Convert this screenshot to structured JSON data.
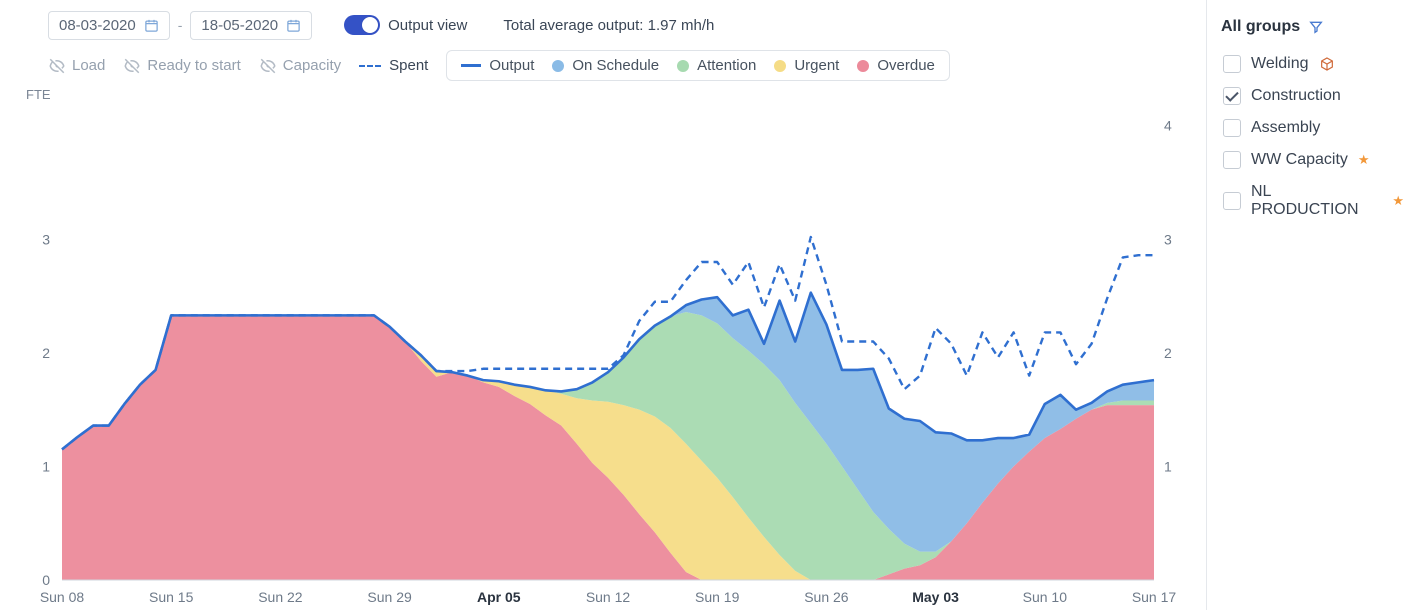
{
  "colors": {
    "output_line": "#2f6fd0",
    "spent_line": "#2f6fd0",
    "on_schedule": "#8abbe6",
    "attention": "#a7dab0",
    "urgent": "#f5dc86",
    "overdue": "#ec8a9a",
    "axis_text": "#6e7a89",
    "grid": "#e6eaee",
    "background": "#ffffff",
    "border": "#d8dde3",
    "accent_toggle": "#3452c6"
  },
  "toolbar": {
    "date_start": "08-03-2020",
    "date_end": "18-05-2020",
    "output_view_label": "Output view",
    "output_view_on": true,
    "summary_label": "Total average output: 1.97 mh/h"
  },
  "toggle_muted": {
    "load": "Load",
    "ready": "Ready to start",
    "capacity": "Capacity"
  },
  "spent_label": "Spent",
  "legend": {
    "output": "Output",
    "on_schedule": "On Schedule",
    "attention": "Attention",
    "urgent": "Urgent",
    "overdue": "Overdue"
  },
  "sidebar": {
    "title": "All groups",
    "items": [
      {
        "label": "Welding",
        "checked": false,
        "icon": "cube"
      },
      {
        "label": "Construction",
        "checked": true,
        "icon": null
      },
      {
        "label": "Assembly",
        "checked": false,
        "icon": null
      },
      {
        "label": "WW Capacity",
        "checked": false,
        "icon": "star"
      },
      {
        "label": "NL PRODUCTION",
        "checked": false,
        "icon": "star"
      }
    ]
  },
  "chart": {
    "type": "stacked-area-with-lines",
    "y_left_label": "FTE",
    "y_left_ticks": [
      0,
      1,
      2,
      3
    ],
    "y_right_ticks": [
      1,
      2,
      3,
      4
    ],
    "ylim": [
      0,
      4.2
    ],
    "x_labels": [
      "Sun 08",
      "Sun 15",
      "Sun 22",
      "Sun 29",
      "Apr 05",
      "Sun 12",
      "Sun 19",
      "Sun 26",
      "May 03",
      "Sun 10",
      "Sun 17"
    ],
    "x_label_bold": {
      "4": true,
      "8": true
    },
    "n_points": 71,
    "series": {
      "overdue": [
        1.15,
        1.26,
        1.36,
        1.36,
        1.55,
        1.72,
        1.85,
        2.33,
        2.33,
        2.33,
        2.33,
        2.33,
        2.33,
        2.33,
        2.33,
        2.33,
        2.33,
        2.33,
        2.33,
        2.33,
        2.33,
        2.23,
        2.1,
        1.93,
        1.79,
        1.83,
        1.8,
        1.74,
        1.7,
        1.62,
        1.55,
        1.45,
        1.36,
        1.2,
        1.03,
        0.9,
        0.75,
        0.58,
        0.42,
        0.24,
        0.07,
        0.0,
        0.0,
        0.0,
        0.0,
        0.0,
        0.0,
        0.0,
        0.0,
        0.0,
        0.0,
        0.0,
        0.0,
        0.05,
        0.1,
        0.13,
        0.2,
        0.34,
        0.5,
        0.68,
        0.85,
        1.0,
        1.13,
        1.25,
        1.33,
        1.42,
        1.5,
        1.54,
        1.54,
        1.54,
        1.54
      ],
      "urgent": [
        0.0,
        0.0,
        0.0,
        0.0,
        0.0,
        0.0,
        0.0,
        0.0,
        0.0,
        0.0,
        0.0,
        0.0,
        0.0,
        0.0,
        0.0,
        0.0,
        0.0,
        0.0,
        0.0,
        0.0,
        0.0,
        0.0,
        0.0,
        0.05,
        0.05,
        0.0,
        0.0,
        0.02,
        0.05,
        0.1,
        0.15,
        0.22,
        0.28,
        0.4,
        0.55,
        0.67,
        0.79,
        0.92,
        1.02,
        1.1,
        1.13,
        1.05,
        0.9,
        0.73,
        0.55,
        0.38,
        0.22,
        0.08,
        0.0,
        0.0,
        0.0,
        0.0,
        0.0,
        0.0,
        0.0,
        0.0,
        0.0,
        0.0,
        0.0,
        0.0,
        0.0,
        0.0,
        0.0,
        0.0,
        0.0,
        0.0,
        0.0,
        0.0,
        0.0,
        0.0,
        0.0
      ],
      "attention": [
        0.0,
        0.0,
        0.0,
        0.0,
        0.0,
        0.0,
        0.0,
        0.0,
        0.0,
        0.0,
        0.0,
        0.0,
        0.0,
        0.0,
        0.0,
        0.0,
        0.0,
        0.0,
        0.0,
        0.0,
        0.0,
        0.0,
        0.0,
        0.0,
        0.0,
        0.0,
        0.0,
        0.0,
        0.0,
        0.0,
        0.0,
        0.0,
        0.02,
        0.08,
        0.16,
        0.26,
        0.42,
        0.62,
        0.8,
        0.98,
        1.16,
        1.28,
        1.36,
        1.4,
        1.47,
        1.52,
        1.54,
        1.48,
        1.38,
        1.2,
        1.0,
        0.8,
        0.6,
        0.4,
        0.22,
        0.12,
        0.05,
        0.0,
        0.0,
        0.0,
        0.0,
        0.0,
        0.0,
        0.0,
        0.0,
        0.0,
        0.0,
        0.02,
        0.04,
        0.04,
        0.04
      ],
      "on_schedule": [
        0.0,
        0.0,
        0.0,
        0.0,
        0.0,
        0.0,
        0.0,
        0.0,
        0.0,
        0.0,
        0.0,
        0.0,
        0.0,
        0.0,
        0.0,
        0.0,
        0.0,
        0.0,
        0.0,
        0.0,
        0.0,
        0.0,
        0.0,
        0.0,
        0.0,
        0.0,
        0.0,
        0.0,
        0.0,
        0.0,
        0.0,
        0.0,
        0.0,
        0.0,
        0.0,
        0.0,
        0.0,
        0.0,
        0.0,
        0.0,
        0.06,
        0.14,
        0.23,
        0.2,
        0.36,
        0.18,
        0.7,
        0.54,
        1.15,
        1.05,
        0.85,
        1.05,
        1.26,
        1.06,
        1.1,
        1.15,
        1.05,
        0.95,
        0.73,
        0.55,
        0.4,
        0.25,
        0.15,
        0.3,
        0.3,
        0.08,
        0.06,
        0.1,
        0.14,
        0.16,
        0.18
      ],
      "output": [
        1.15,
        1.26,
        1.36,
        1.36,
        1.55,
        1.72,
        1.85,
        2.33,
        2.33,
        2.33,
        2.33,
        2.33,
        2.33,
        2.33,
        2.33,
        2.33,
        2.33,
        2.33,
        2.33,
        2.33,
        2.33,
        2.23,
        2.1,
        1.98,
        1.84,
        1.83,
        1.8,
        1.76,
        1.75,
        1.72,
        1.7,
        1.67,
        1.66,
        1.68,
        1.74,
        1.83,
        1.96,
        2.12,
        2.24,
        2.32,
        2.42,
        2.47,
        2.49,
        2.33,
        2.38,
        2.08,
        2.46,
        2.1,
        2.53,
        2.25,
        1.85,
        1.85,
        1.86,
        1.51,
        1.42,
        1.4,
        1.3,
        1.29,
        1.23,
        1.23,
        1.25,
        1.25,
        1.28,
        1.55,
        1.63,
        1.5,
        1.56,
        1.66,
        1.72,
        1.74,
        1.76
      ],
      "spent": [
        1.15,
        1.26,
        1.36,
        1.36,
        1.55,
        1.72,
        1.85,
        2.33,
        2.33,
        2.33,
        2.33,
        2.33,
        2.33,
        2.33,
        2.33,
        2.33,
        2.33,
        2.33,
        2.33,
        2.33,
        2.33,
        2.23,
        2.1,
        1.98,
        1.84,
        1.84,
        1.84,
        1.86,
        1.86,
        1.86,
        1.86,
        1.86,
        1.86,
        1.86,
        1.86,
        1.86,
        1.98,
        2.28,
        2.45,
        2.45,
        2.64,
        2.8,
        2.8,
        2.6,
        2.8,
        2.4,
        2.78,
        2.46,
        3.02,
        2.6,
        2.1,
        2.1,
        2.1,
        1.95,
        1.68,
        1.8,
        2.22,
        2.08,
        1.8,
        2.18,
        1.96,
        2.18,
        1.8,
        2.18,
        2.18,
        1.9,
        2.08,
        2.48,
        2.84,
        2.86,
        2.86
      ]
    }
  }
}
